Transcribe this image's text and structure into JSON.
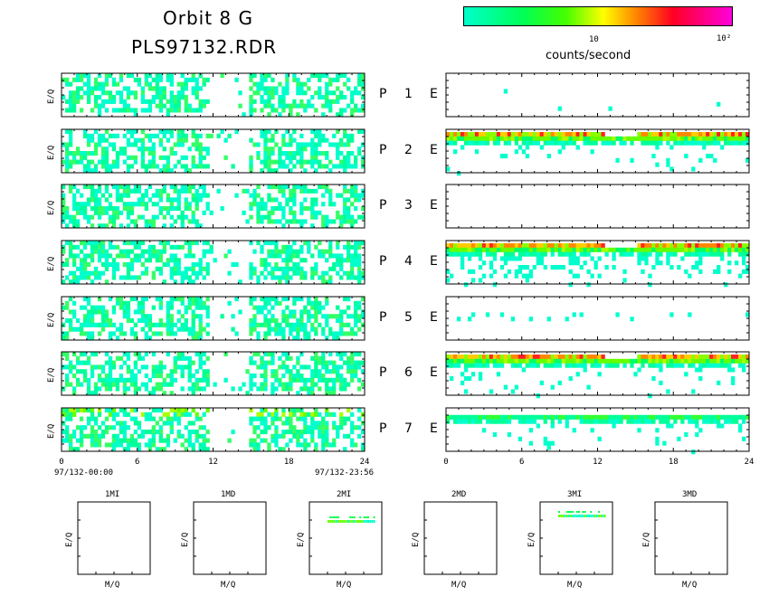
{
  "header": {
    "title_line1": "Orbit 8 G",
    "title_line2": "PLS97132.RDR"
  },
  "colorbar": {
    "tick_10": "10",
    "tick_100": "10²",
    "label": "counts/second",
    "colors": [
      "#00ffcc",
      "#00ff44",
      "#66ff00",
      "#ffff00",
      "#ff8800",
      "#ff0033",
      "#ff00cc"
    ]
  },
  "time_axis": {
    "start_label": "97/132-00:00",
    "end_label": "97/132-23:56"
  },
  "chart_data": {
    "type": "heatmap",
    "ylabel": "E/Q",
    "x_ticks": [
      "0",
      "6",
      "12",
      "18",
      "24"
    ],
    "xlim": [
      0,
      24
    ],
    "x_units": "hours",
    "rows": [
      {
        "label": "P 1 E",
        "P": "P",
        "num": "1",
        "E": "E",
        "left_level": "low",
        "right_level": "very-sparse"
      },
      {
        "label": "P 2 E",
        "P": "P",
        "num": "2",
        "E": "E",
        "left_level": "low",
        "right_level": "high-band"
      },
      {
        "label": "P 3 E",
        "P": "P",
        "num": "3",
        "E": "E",
        "left_level": "low",
        "right_level": "empty"
      },
      {
        "label": "P 4 E",
        "P": "P",
        "num": "4",
        "E": "E",
        "left_level": "low",
        "right_level": "peak-band"
      },
      {
        "label": "P 5 E",
        "P": "P",
        "num": "5",
        "E": "E",
        "left_level": "low",
        "right_level": "sparse"
      },
      {
        "label": "P 6 E",
        "P": "P",
        "num": "6",
        "E": "E",
        "left_level": "low",
        "right_level": "peak-band"
      },
      {
        "label": "P 7 E",
        "P": "P",
        "num": "7",
        "E": "E",
        "left_level": "medium",
        "right_level": "mid-band"
      }
    ],
    "gap_hours": [
      12,
      14.5
    ],
    "colorbar_ticks": [
      "10",
      "10²"
    ],
    "colorbar_label": "counts/second"
  },
  "mq_panels": [
    {
      "title": "1MI",
      "ylabel": "E/Q",
      "xlabel": "M/Q",
      "has_data": false
    },
    {
      "title": "1MD",
      "ylabel": "E/Q",
      "xlabel": "M/Q",
      "has_data": false
    },
    {
      "title": "2MI",
      "ylabel": "E/Q",
      "xlabel": "M/Q",
      "has_data": true
    },
    {
      "title": "2MD",
      "ylabel": "E/Q",
      "xlabel": "M/Q",
      "has_data": false
    },
    {
      "title": "3MI",
      "ylabel": "E/Q",
      "xlabel": "M/Q",
      "has_data": true
    },
    {
      "title": "3MD",
      "ylabel": "E/Q",
      "xlabel": "M/Q",
      "has_data": false
    }
  ]
}
